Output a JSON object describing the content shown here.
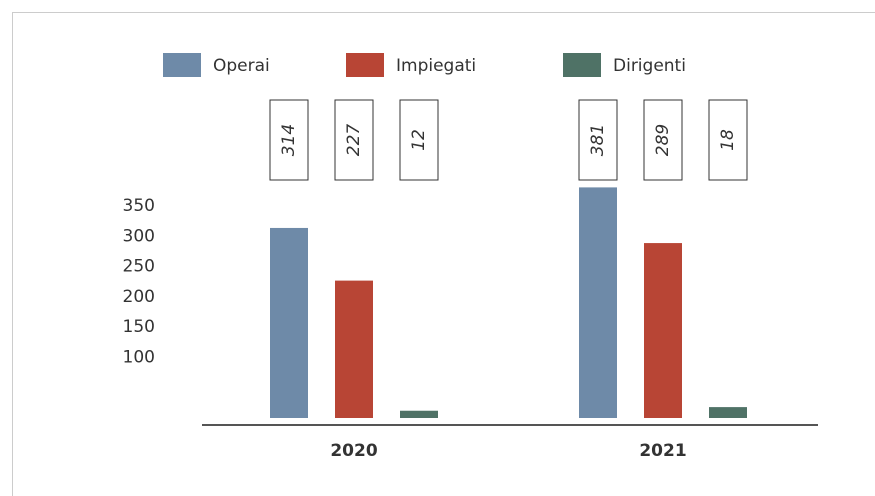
{
  "chart_data": {
    "type": "bar",
    "categories": [
      "2020",
      "2021"
    ],
    "series": [
      {
        "name": "Operai",
        "color": "#6e8aa8",
        "values": [
          314,
          381
        ]
      },
      {
        "name": "Impiegati",
        "color": "#b84535",
        "values": [
          227,
          289
        ]
      },
      {
        "name": "Dirigenti",
        "color": "#4f7266",
        "values": [
          12,
          18
        ]
      }
    ],
    "ylim": [
      0,
      380
    ],
    "yticks": [
      100,
      150,
      200,
      250,
      300,
      350
    ]
  }
}
